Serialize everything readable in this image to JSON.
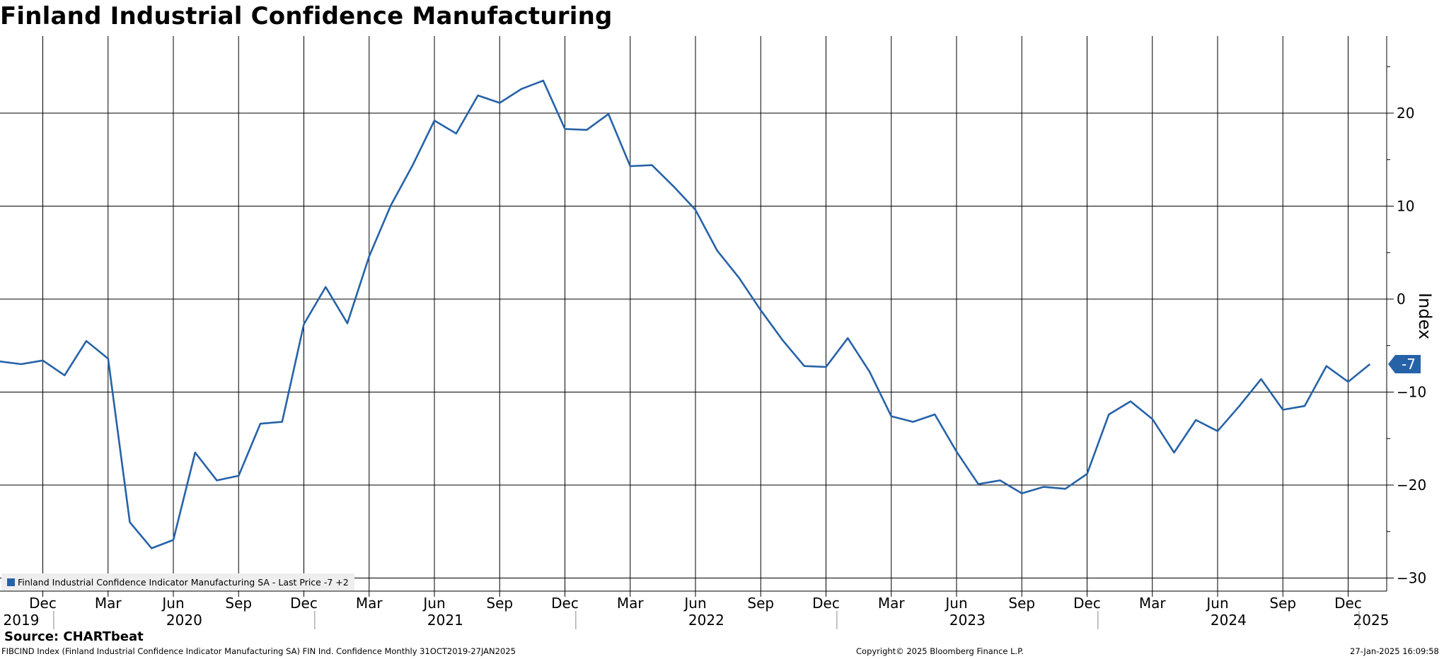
{
  "title": "Finland Industrial Confidence Manufacturing",
  "source": "Source: CHARTbeat",
  "footer": {
    "ticker_line": "FIBCIND Index (Finland Industrial Confidence Indicator Manufacturing SA) FIN Ind. Confidence  Monthly 31OCT2019-27JAN2025",
    "copyright": "Copyright© 2025 Bloomberg Finance L.P.",
    "timestamp": "27-Jan-2025 16:09:58"
  },
  "legend": {
    "label": "Finland Industrial Confidence Indicator Manufacturing SA - Last Price -7  +2"
  },
  "colors": {
    "line": "#2662a8",
    "grid": "#000000",
    "badge_bg": "#2662a8",
    "badge_text": "#ffffff"
  },
  "chart_data": {
    "type": "line",
    "title": "Finland Industrial Confidence Manufacturing",
    "ylabel": "Index",
    "xlabel": "",
    "ylim": [
      -31,
      28
    ],
    "yticks": [
      20,
      10,
      0,
      -10,
      -20,
      -30
    ],
    "ytick_labels": [
      "20",
      "10",
      "0",
      "−10",
      "−20",
      "−30"
    ],
    "y_axis_side": "right",
    "grid": true,
    "legend_position": "bottom-left",
    "last_value_badge": "-7",
    "month_ticks": [
      "Dec",
      "Mar",
      "Jun",
      "Sep",
      "Dec",
      "Mar",
      "Jun",
      "Sep",
      "Dec",
      "Mar",
      "Jun",
      "Sep",
      "Dec",
      "Mar",
      "Jun",
      "Sep",
      "Dec",
      "Mar",
      "Jun",
      "Sep",
      "Dec"
    ],
    "year_labels": [
      "2019",
      "2020",
      "2021",
      "2022",
      "2023",
      "2024",
      "2025"
    ],
    "series": [
      {
        "name": "Finland Industrial Confidence Indicator Manufacturing SA",
        "x": [
          "2019-10",
          "2019-11",
          "2019-12",
          "2020-01",
          "2020-02",
          "2020-03",
          "2020-04",
          "2020-05",
          "2020-06",
          "2020-07",
          "2020-08",
          "2020-09",
          "2020-10",
          "2020-11",
          "2020-12",
          "2021-01",
          "2021-02",
          "2021-03",
          "2021-04",
          "2021-05",
          "2021-06",
          "2021-07",
          "2021-08",
          "2021-09",
          "2021-10",
          "2021-11",
          "2021-12",
          "2022-01",
          "2022-02",
          "2022-03",
          "2022-04",
          "2022-05",
          "2022-06",
          "2022-07",
          "2022-08",
          "2022-09",
          "2022-10",
          "2022-11",
          "2022-12",
          "2023-01",
          "2023-02",
          "2023-03",
          "2023-04",
          "2023-05",
          "2023-06",
          "2023-07",
          "2023-08",
          "2023-09",
          "2023-10",
          "2023-11",
          "2023-12",
          "2024-01",
          "2024-02",
          "2024-03",
          "2024-04",
          "2024-05",
          "2024-06",
          "2024-07",
          "2024-08",
          "2024-09",
          "2024-10",
          "2024-11",
          "2024-12",
          "2025-01"
        ],
        "values": [
          -6.7,
          -7.0,
          -6.6,
          -8.2,
          -4.5,
          -6.4,
          -24.0,
          -26.8,
          -25.9,
          -16.5,
          -19.5,
          -19.0,
          -13.4,
          -13.2,
          -2.7,
          1.3,
          -2.6,
          4.6,
          10.1,
          14.4,
          19.2,
          17.8,
          21.9,
          21.1,
          22.6,
          23.5,
          18.3,
          18.2,
          19.9,
          14.3,
          14.4,
          12.1,
          9.6,
          5.2,
          2.3,
          -1.2,
          -4.4,
          -7.2,
          -7.3,
          -4.2,
          -7.8,
          -12.6,
          -13.2,
          -12.4,
          -16.4,
          -19.9,
          -19.5,
          -20.9,
          -20.2,
          -20.4,
          -18.8,
          -12.4,
          -11.0,
          -12.9,
          -16.5,
          -13.0,
          -14.2,
          -11.5,
          -8.6,
          -11.9,
          -11.5,
          -7.2,
          -8.9,
          -7.0
        ]
      }
    ]
  }
}
